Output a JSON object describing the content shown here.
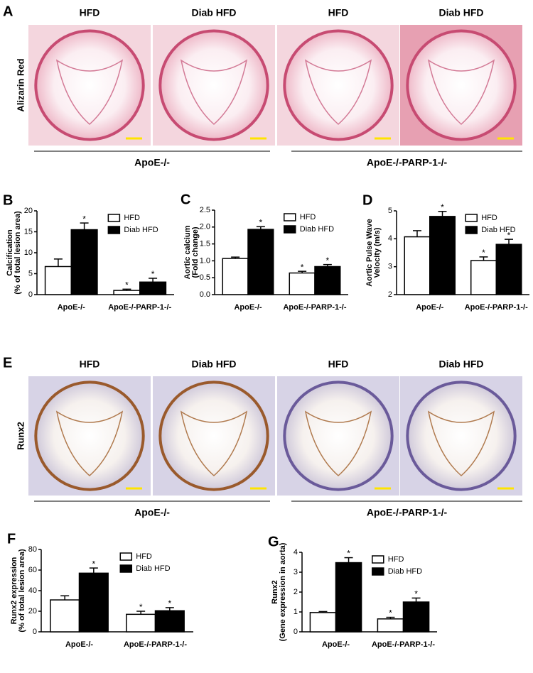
{
  "panels": {
    "A": {
      "label": "A",
      "columns": [
        "HFD",
        "Diab HFD",
        "HFD",
        "Diab HFD"
      ],
      "row_label": "Alizarin Red",
      "groups": [
        "ApoE-/-",
        "ApoE-/-PARP-1-/-"
      ]
    },
    "E": {
      "label": "E",
      "columns": [
        "HFD",
        "Diab HFD",
        "HFD",
        "Diab HFD"
      ],
      "row_label": "Runx2",
      "groups": [
        "ApoE-/-",
        "ApoE-/-PARP-1-/-"
      ]
    }
  },
  "chart_data": [
    {
      "label": "B",
      "type": "bar",
      "ylabel": [
        "Calcification",
        "(% of total lesion area)"
      ],
      "categories": [
        "ApoE-/-",
        "ApoE-/-PARP-1-/-"
      ],
      "ylim": [
        0,
        20
      ],
      "yticks": [
        0,
        5,
        10,
        15,
        20
      ],
      "legend": "upper right",
      "series": [
        {
          "name": "HFD",
          "color": "#ffffff",
          "values": [
            6.7,
            1.0
          ],
          "errors": [
            1.8,
            0.3
          ],
          "markers": [
            null,
            "*"
          ]
        },
        {
          "name": "Diab HFD",
          "color": "#000000",
          "values": [
            15.5,
            3.0
          ],
          "errors": [
            1.6,
            0.9
          ],
          "markers": [
            "*",
            "*"
          ]
        }
      ]
    },
    {
      "label": "C",
      "type": "bar",
      "ylabel": [
        "Aortic calcium",
        "(Fold change)"
      ],
      "categories": [
        "ApoE-/-",
        "ApoE-/-PARP-1-/-"
      ],
      "ylim": [
        0,
        2.5
      ],
      "yticks": [
        {
          "value": 0,
          "label": "0.0"
        },
        0.5,
        {
          "value": 1,
          "label": "1.0"
        },
        1.5,
        {
          "value": 2,
          "label": "2.0"
        },
        2.5
      ],
      "legend": "upper right",
      "series": [
        {
          "name": "HFD",
          "color": "#ffffff",
          "values": [
            1.07,
            0.64
          ],
          "errors": [
            0.04,
            0.05
          ],
          "markers": [
            null,
            "*"
          ]
        },
        {
          "name": "Diab HFD",
          "color": "#000000",
          "values": [
            1.93,
            0.83
          ],
          "errors": [
            0.08,
            0.06
          ],
          "markers": [
            "*",
            "*"
          ]
        }
      ]
    },
    {
      "label": "D",
      "type": "bar",
      "ylabel": [
        "Aortic Pulse Wave",
        "Velocity (m/s)"
      ],
      "categories": [
        "ApoE-/-",
        "ApoE-/-PARP-1-/-"
      ],
      "ylim": [
        2,
        5
      ],
      "yticks": [
        2,
        3,
        4,
        5
      ],
      "legend": "upper right",
      "series": [
        {
          "name": "HFD",
          "color": "#ffffff",
          "values": [
            4.07,
            3.22
          ],
          "errors": [
            0.22,
            0.13
          ],
          "markers": [
            null,
            "*"
          ]
        },
        {
          "name": "Diab HFD",
          "color": "#000000",
          "values": [
            4.8,
            3.8
          ],
          "errors": [
            0.18,
            0.18
          ],
          "markers": [
            "*",
            "*"
          ]
        }
      ]
    },
    {
      "label": "F",
      "type": "bar",
      "ylabel": [
        "Runx2 expression",
        "(% of total lesion area)"
      ],
      "categories": [
        "ApoE-/-",
        "ApoE-/-PARP-1-/-"
      ],
      "ylim": [
        0,
        80
      ],
      "yticks": [
        0,
        20,
        40,
        60,
        80
      ],
      "legend": "upper right",
      "series": [
        {
          "name": "HFD",
          "color": "#ffffff",
          "values": [
            31,
            17
          ],
          "errors": [
            4,
            3
          ],
          "markers": [
            null,
            "*"
          ]
        },
        {
          "name": "Diab HFD",
          "color": "#000000",
          "values": [
            57,
            20.5
          ],
          "errors": [
            5,
            3
          ],
          "markers": [
            "*",
            "*"
          ]
        }
      ]
    },
    {
      "label": "G",
      "type": "bar",
      "ylabel": [
        "Runx2",
        "(Gene expression in aorta)"
      ],
      "categories": [
        "ApoE-/-",
        "ApoE-/-PARP-1-/-"
      ],
      "ylim": [
        0,
        4
      ],
      "yticks": [
        0,
        1,
        2,
        3,
        4
      ],
      "legend": "upper right",
      "series": [
        {
          "name": "HFD",
          "color": "#ffffff",
          "values": [
            0.97,
            0.65
          ],
          "errors": [
            0.05,
            0.08
          ],
          "markers": [
            null,
            "*"
          ]
        },
        {
          "name": "Diab HFD",
          "color": "#000000",
          "values": [
            3.48,
            1.5
          ],
          "errors": [
            0.25,
            0.2
          ],
          "markers": [
            "*",
            "*"
          ]
        }
      ]
    }
  ]
}
